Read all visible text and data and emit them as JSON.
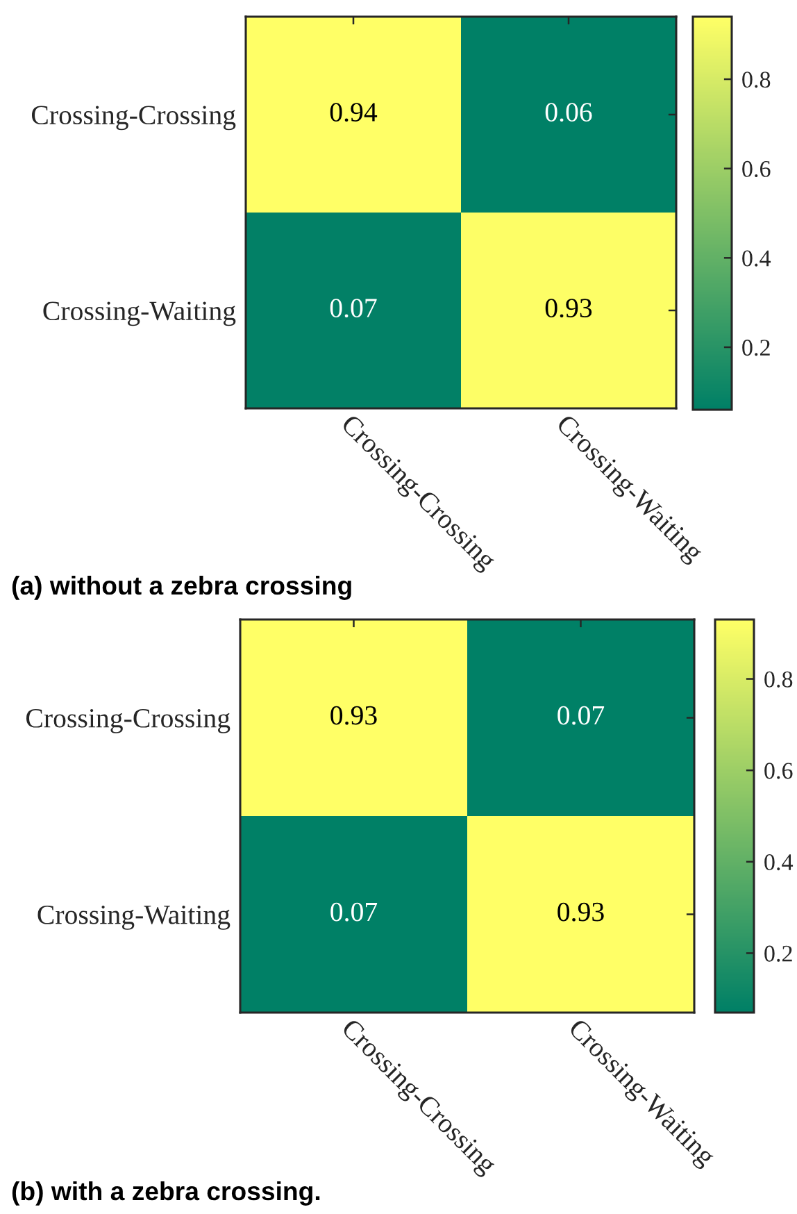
{
  "chart_data": [
    {
      "type": "heatmap",
      "categories": [
        "Crossing-Crossing",
        "Crossing-Waiting"
      ],
      "y_categories": [
        "Crossing-Crossing",
        "Crossing-Waiting"
      ],
      "cells": [
        [
          0.94,
          0.06
        ],
        [
          0.07,
          0.93
        ]
      ],
      "data_labels": true,
      "clim": [
        0.06,
        0.94
      ],
      "cticks": [
        0.2,
        0.4,
        0.6,
        0.8
      ],
      "annotations": [
        "(a) without a zebra crossing"
      ]
    },
    {
      "type": "heatmap",
      "categories": [
        "Crossing-Crossing",
        "Crossing-Waiting"
      ],
      "y_categories": [
        "Crossing-Crossing",
        "Crossing-Waiting"
      ],
      "cells": [
        [
          0.93,
          0.07
        ],
        [
          0.07,
          0.93
        ]
      ],
      "data_labels": true,
      "clim": [
        0.07,
        0.93
      ],
      "cticks": [
        0.2,
        0.4,
        0.6,
        0.8
      ],
      "annotations": [
        "(b) with a zebra crossing."
      ]
    }
  ]
}
